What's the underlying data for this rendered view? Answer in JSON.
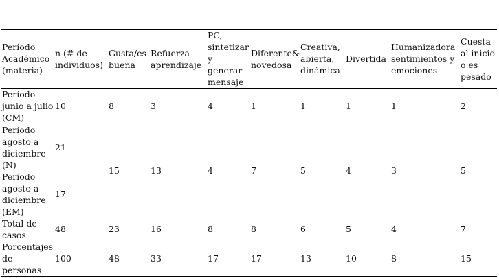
{
  "table": {
    "header": [
      "Período Académico (materia)",
      "n (# de individuos)",
      "Gusta/es buena",
      "Refuerza aprendizaje",
      "PC, sintetizar y generar mensaje",
      "Diferente& novedosa",
      "Creativa, abierta, dinámica",
      "Divertida",
      "Humanizadora sentimientos y emociones",
      "Cuesta al inicio o es pesado"
    ],
    "rows": [
      [
        "Período junio a julio (CM)",
        10,
        8,
        3,
        4,
        1,
        1,
        1,
        1,
        2
      ],
      [
        "Período agosto a diciembre (N)",
        21,
        15,
        13,
        4,
        7,
        5,
        4,
        3,
        5
      ],
      [
        "Período agosto a diciembre (EM)",
        17
      ],
      [
        "Total de casos",
        48,
        23,
        16,
        8,
        8,
        6,
        5,
        4,
        7
      ],
      [
        "Porcentajes de personas",
        100,
        48,
        33,
        17,
        17,
        13,
        10,
        8,
        15
      ]
    ]
  }
}
